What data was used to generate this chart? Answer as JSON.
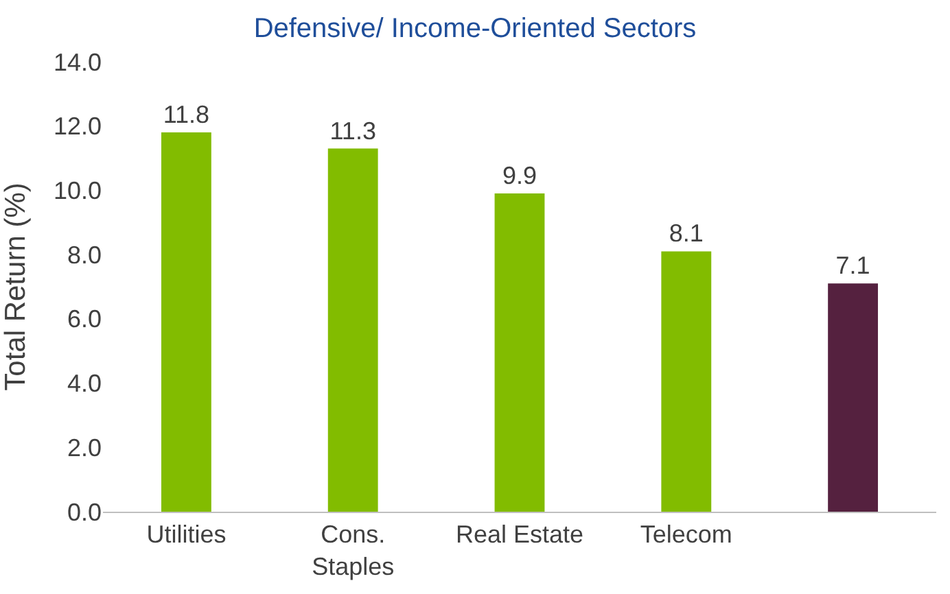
{
  "chart_data": {
    "type": "bar",
    "title": "Defensive/ Income-Oriented Sectors",
    "ylabel": "Total Return (%)",
    "categories": [
      "Utilities",
      "Cons.\nStaples",
      "Real Estate",
      "Telecom",
      null
    ],
    "values": [
      11.8,
      11.3,
      9.9,
      8.1,
      7.1
    ],
    "colors": [
      "#82bc00",
      "#82bc00",
      "#82bc00",
      "#82bc00",
      "#55213f"
    ],
    "ylim": [
      0,
      14
    ],
    "yticks": [
      {
        "value": 0,
        "label": "0.0"
      },
      {
        "value": 2,
        "label": "2.0"
      },
      {
        "value": 4,
        "label": "4.0"
      },
      {
        "value": 6,
        "label": "6.0"
      },
      {
        "value": 8,
        "label": "8.0"
      },
      {
        "value": 10,
        "label": "10.0"
      },
      {
        "value": 12,
        "label": "12.0"
      },
      {
        "value": 14,
        "label": "14.0"
      }
    ],
    "data_labels": true
  }
}
